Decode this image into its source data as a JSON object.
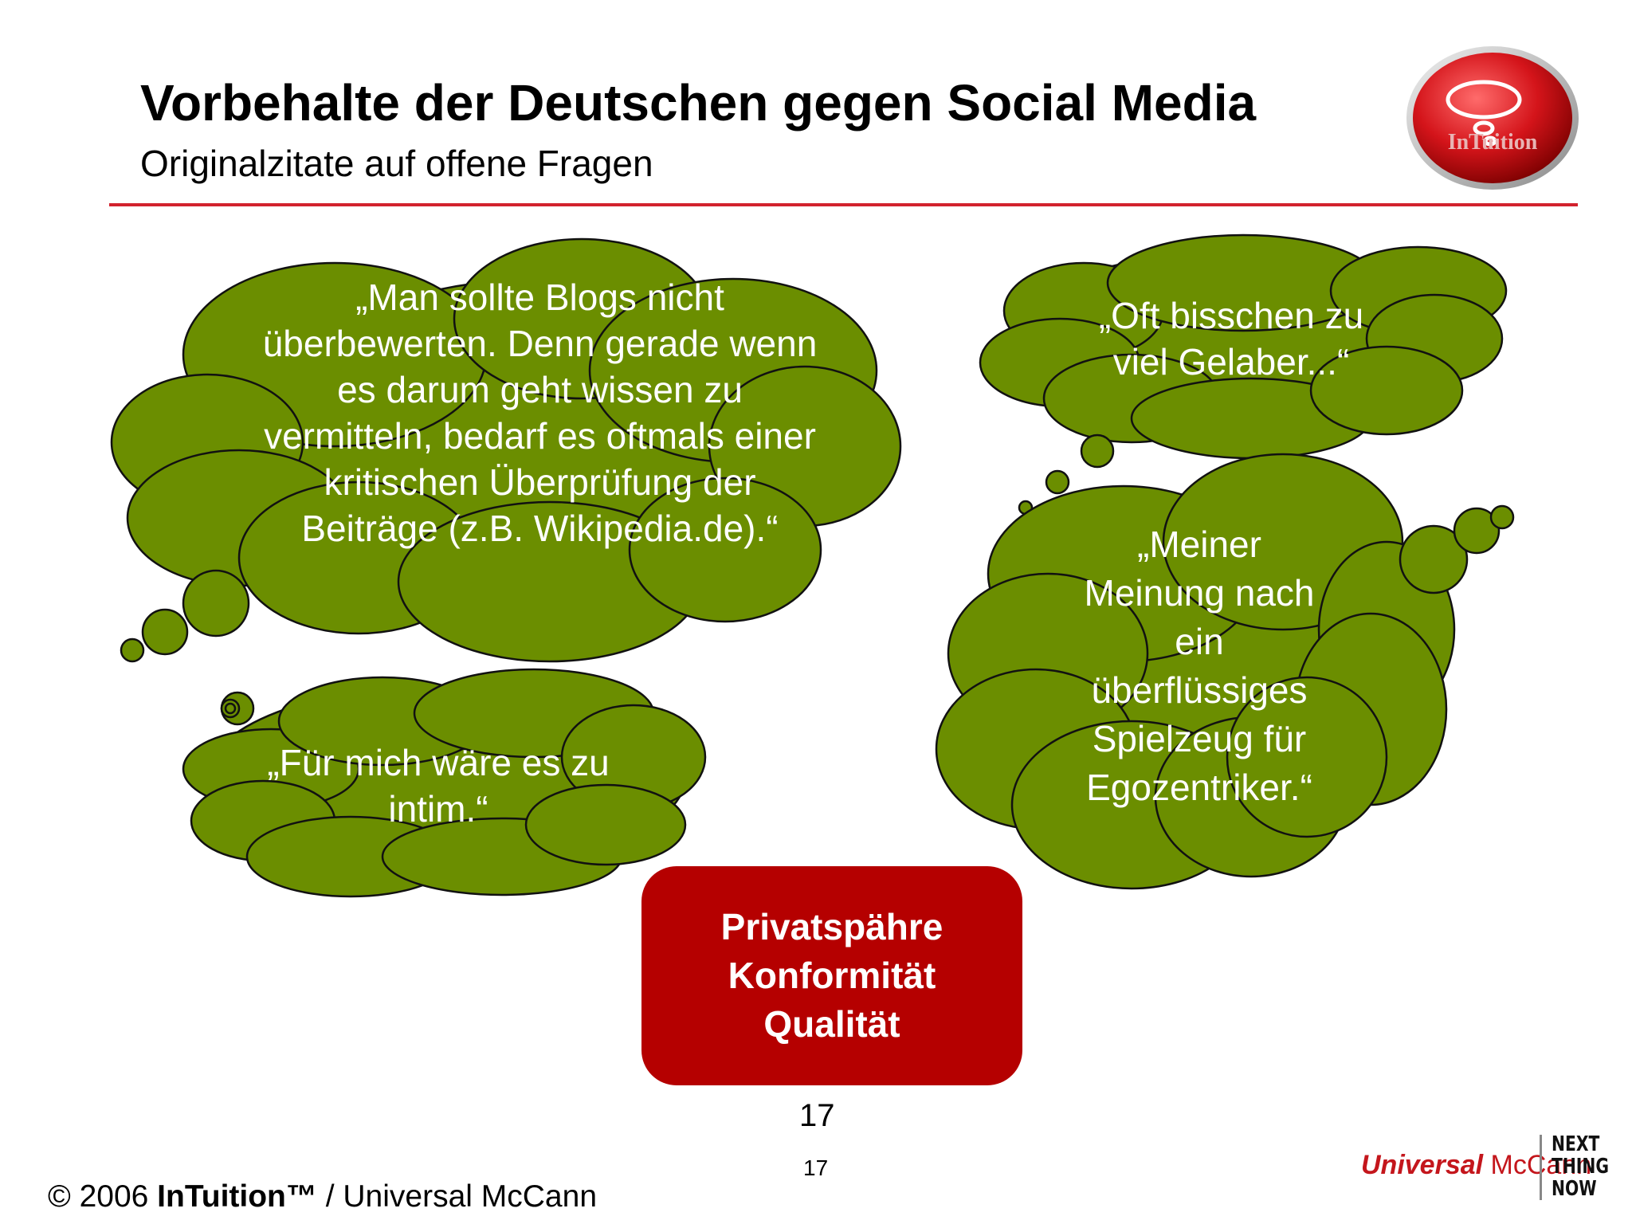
{
  "header": {
    "title": "Vorbehalte der Deutschen gegen Social Media",
    "subtitle": "Originalzitate auf offene Fragen"
  },
  "logo": {
    "text": "InTuition",
    "icon": "thought-bubble-icon"
  },
  "quotes": [
    "„Man sollte Blogs nicht\nüberbewerten. Denn gerade wenn\nes darum geht wissen zu\nvermitteln, bedarf es oftmals einer\nkritischen Überprüfung der\nBeiträge (z.B. Wikipedia.de).“",
    "„Oft bisschen zu\nviel Gelaber...“",
    "„Für mich wäre es zu\nintim.“",
    "„Meiner\nMeinung nach\nein\nüberflüssiges\nSpielzeug für\nEgozentriker.“"
  ],
  "summary": {
    "line1": "Privatspähre",
    "line2": "Konformität",
    "line3": "Qualität"
  },
  "page_number": "17",
  "page_number_small": "17",
  "footer": {
    "copyright_prefix": "© 2006 ",
    "copyright_brand": "InTuition™",
    "copyright_suffix": " / Universal McCann",
    "um_universal": "Universal",
    "um_mccann": " McCann",
    "ntn_line1": "NEXT",
    "ntn_line2": "THING",
    "ntn_line3": "NOW"
  },
  "colors": {
    "cloud_fill": "#6b8e00",
    "accent_red": "#d2222d",
    "summary_box": "#b50000"
  }
}
